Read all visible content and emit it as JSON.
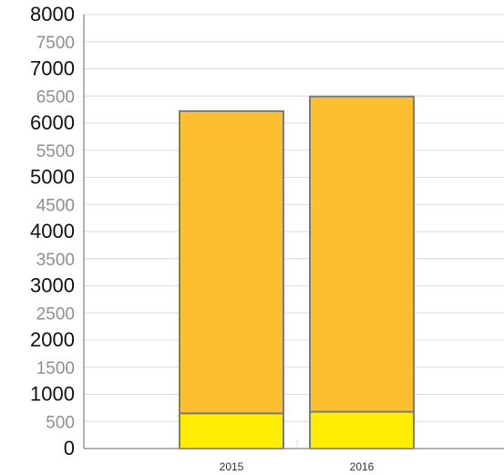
{
  "chart_data": {
    "type": "bar",
    "stacked": true,
    "categories": [
      "2015",
      "2016"
    ],
    "series": [
      {
        "values": [
          650,
          680
        ],
        "color": "#ffed00"
      },
      {
        "values": [
          5570,
          5810
        ],
        "color": "#fbbf2f"
      }
    ],
    "title": "",
    "xlabel": "",
    "ylabel": "",
    "ylim": [
      0,
      8000
    ],
    "yticks": [
      "0",
      "500",
      "1000",
      "1500",
      "2000",
      "2500",
      "3000",
      "3500",
      "4000",
      "4500",
      "5000",
      "5500",
      "6000",
      "6500",
      "7000",
      "7500",
      "8000"
    ],
    "grid": true,
    "legend": "none",
    "colors": {
      "grid": "#dcdcdc",
      "axis": "#9a9a9a",
      "bar_stroke": "#7c7c7c",
      "major_tick_label": "#111111",
      "minor_tick_label": "#8f8f8f",
      "category_label": "#333333"
    }
  }
}
